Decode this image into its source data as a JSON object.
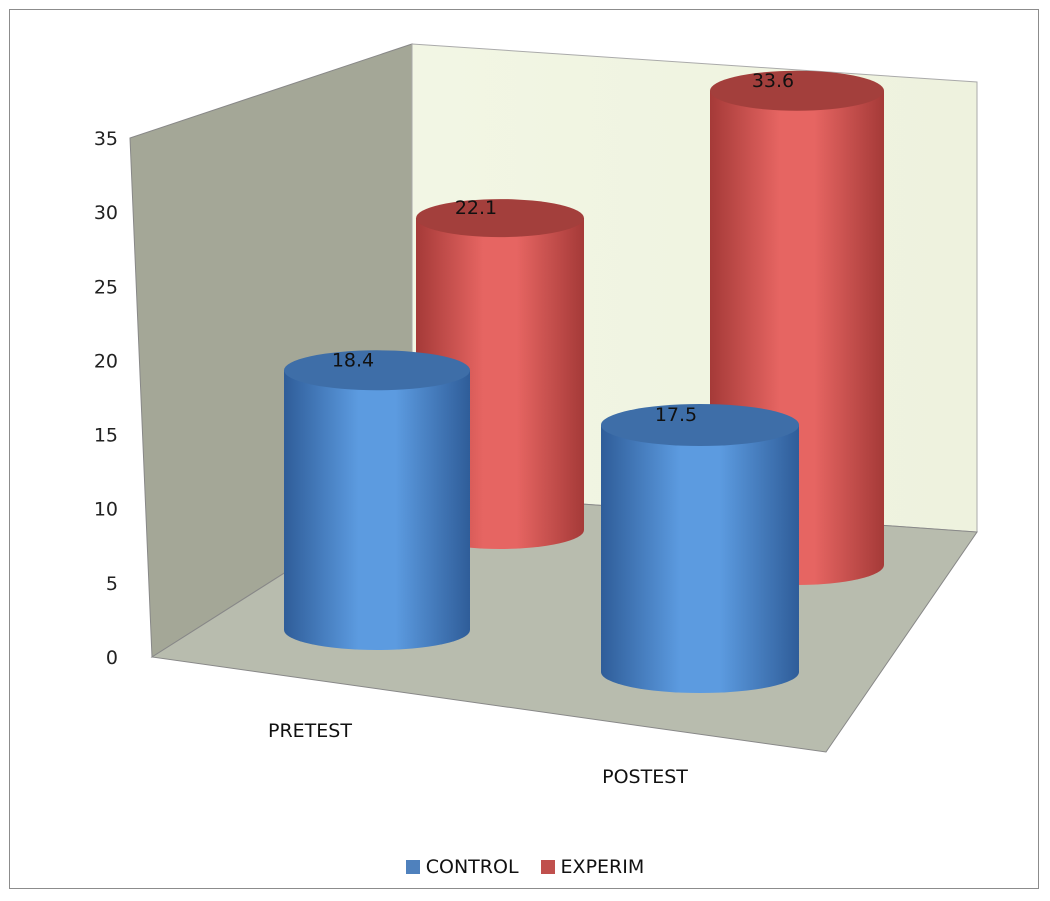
{
  "chart_data": {
    "type": "bar",
    "style": "3d-cylinder",
    "categories": [
      "PRETEST",
      "POSTEST"
    ],
    "series": [
      {
        "name": "CONTROL",
        "values": [
          18.4,
          17.5
        ],
        "color": "#4f81bd"
      },
      {
        "name": "EXPERIM",
        "values": [
          22.1,
          33.6
        ],
        "color": "#c0504d"
      }
    ],
    "title": "",
    "xlabel": "",
    "ylabel": "",
    "ylim": [
      0,
      35
    ],
    "yticks": [
      0,
      5,
      10,
      15,
      20,
      25,
      30,
      35
    ],
    "data_labels": true,
    "legend_position": "bottom",
    "grid": false
  }
}
